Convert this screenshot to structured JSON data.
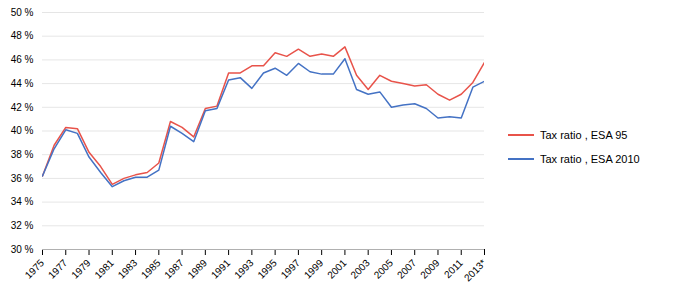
{
  "chart_data": {
    "type": "line",
    "x": [
      1975,
      1976,
      1977,
      1978,
      1979,
      1980,
      1981,
      1982,
      1983,
      1984,
      1985,
      1986,
      1987,
      1988,
      1989,
      1990,
      1991,
      1992,
      1993,
      1994,
      1995,
      1996,
      1997,
      1998,
      1999,
      2000,
      2001,
      2002,
      2003,
      2004,
      2005,
      2006,
      2007,
      2008,
      2009,
      2010,
      2011,
      2012,
      2013
    ],
    "series": [
      {
        "name": "Tax ratio , ESA 95",
        "color": "#e8534a",
        "values": [
          36.2,
          38.8,
          40.3,
          40.2,
          38.2,
          37.0,
          35.5,
          36.0,
          36.3,
          36.5,
          37.3,
          40.8,
          40.3,
          39.5,
          41.9,
          42.1,
          44.9,
          44.9,
          45.5,
          45.5,
          46.6,
          46.3,
          46.9,
          46.3,
          46.5,
          46.3,
          47.1,
          44.7,
          43.5,
          44.7,
          44.2,
          44.0,
          43.8,
          43.9,
          43.1,
          42.6,
          43.1,
          44.1,
          45.8
        ]
      },
      {
        "name": "Tax ratio , ESA 2010",
        "color": "#4472c4",
        "values": [
          36.2,
          38.5,
          40.1,
          39.8,
          37.8,
          36.5,
          35.3,
          35.8,
          36.1,
          36.1,
          36.7,
          40.4,
          39.8,
          39.1,
          41.7,
          41.9,
          44.3,
          44.5,
          43.6,
          44.9,
          45.3,
          44.7,
          45.7,
          45.0,
          44.8,
          44.8,
          46.1,
          43.5,
          43.1,
          43.3,
          42.0,
          42.2,
          42.3,
          41.9,
          41.1,
          41.2,
          41.1,
          43.7,
          44.2
        ]
      }
    ],
    "xlim": [
      1975,
      2013
    ],
    "xticks": [
      1975,
      1977,
      1979,
      1981,
      1983,
      1985,
      1987,
      1989,
      1991,
      1993,
      1995,
      1997,
      1999,
      2001,
      2003,
      2005,
      2007,
      2009,
      2011,
      {
        "value": 2013,
        "label": "2013*"
      }
    ],
    "ylim": [
      30,
      50
    ],
    "yticks": [
      {
        "value": 30,
        "label": "30 %"
      },
      {
        "value": 32,
        "label": "32 %"
      },
      {
        "value": 34,
        "label": "34 %"
      },
      {
        "value": 36,
        "label": "36 %"
      },
      {
        "value": 38,
        "label": "38 %"
      },
      {
        "value": 40,
        "label": "40 %"
      },
      {
        "value": 42,
        "label": "42 %"
      },
      {
        "value": 44,
        "label": "44 %"
      },
      {
        "value": 46,
        "label": "46 %"
      },
      {
        "value": 48,
        "label": "48 %"
      },
      {
        "value": 50,
        "label": "50 %"
      }
    ],
    "grid": "y",
    "legend": "right"
  }
}
